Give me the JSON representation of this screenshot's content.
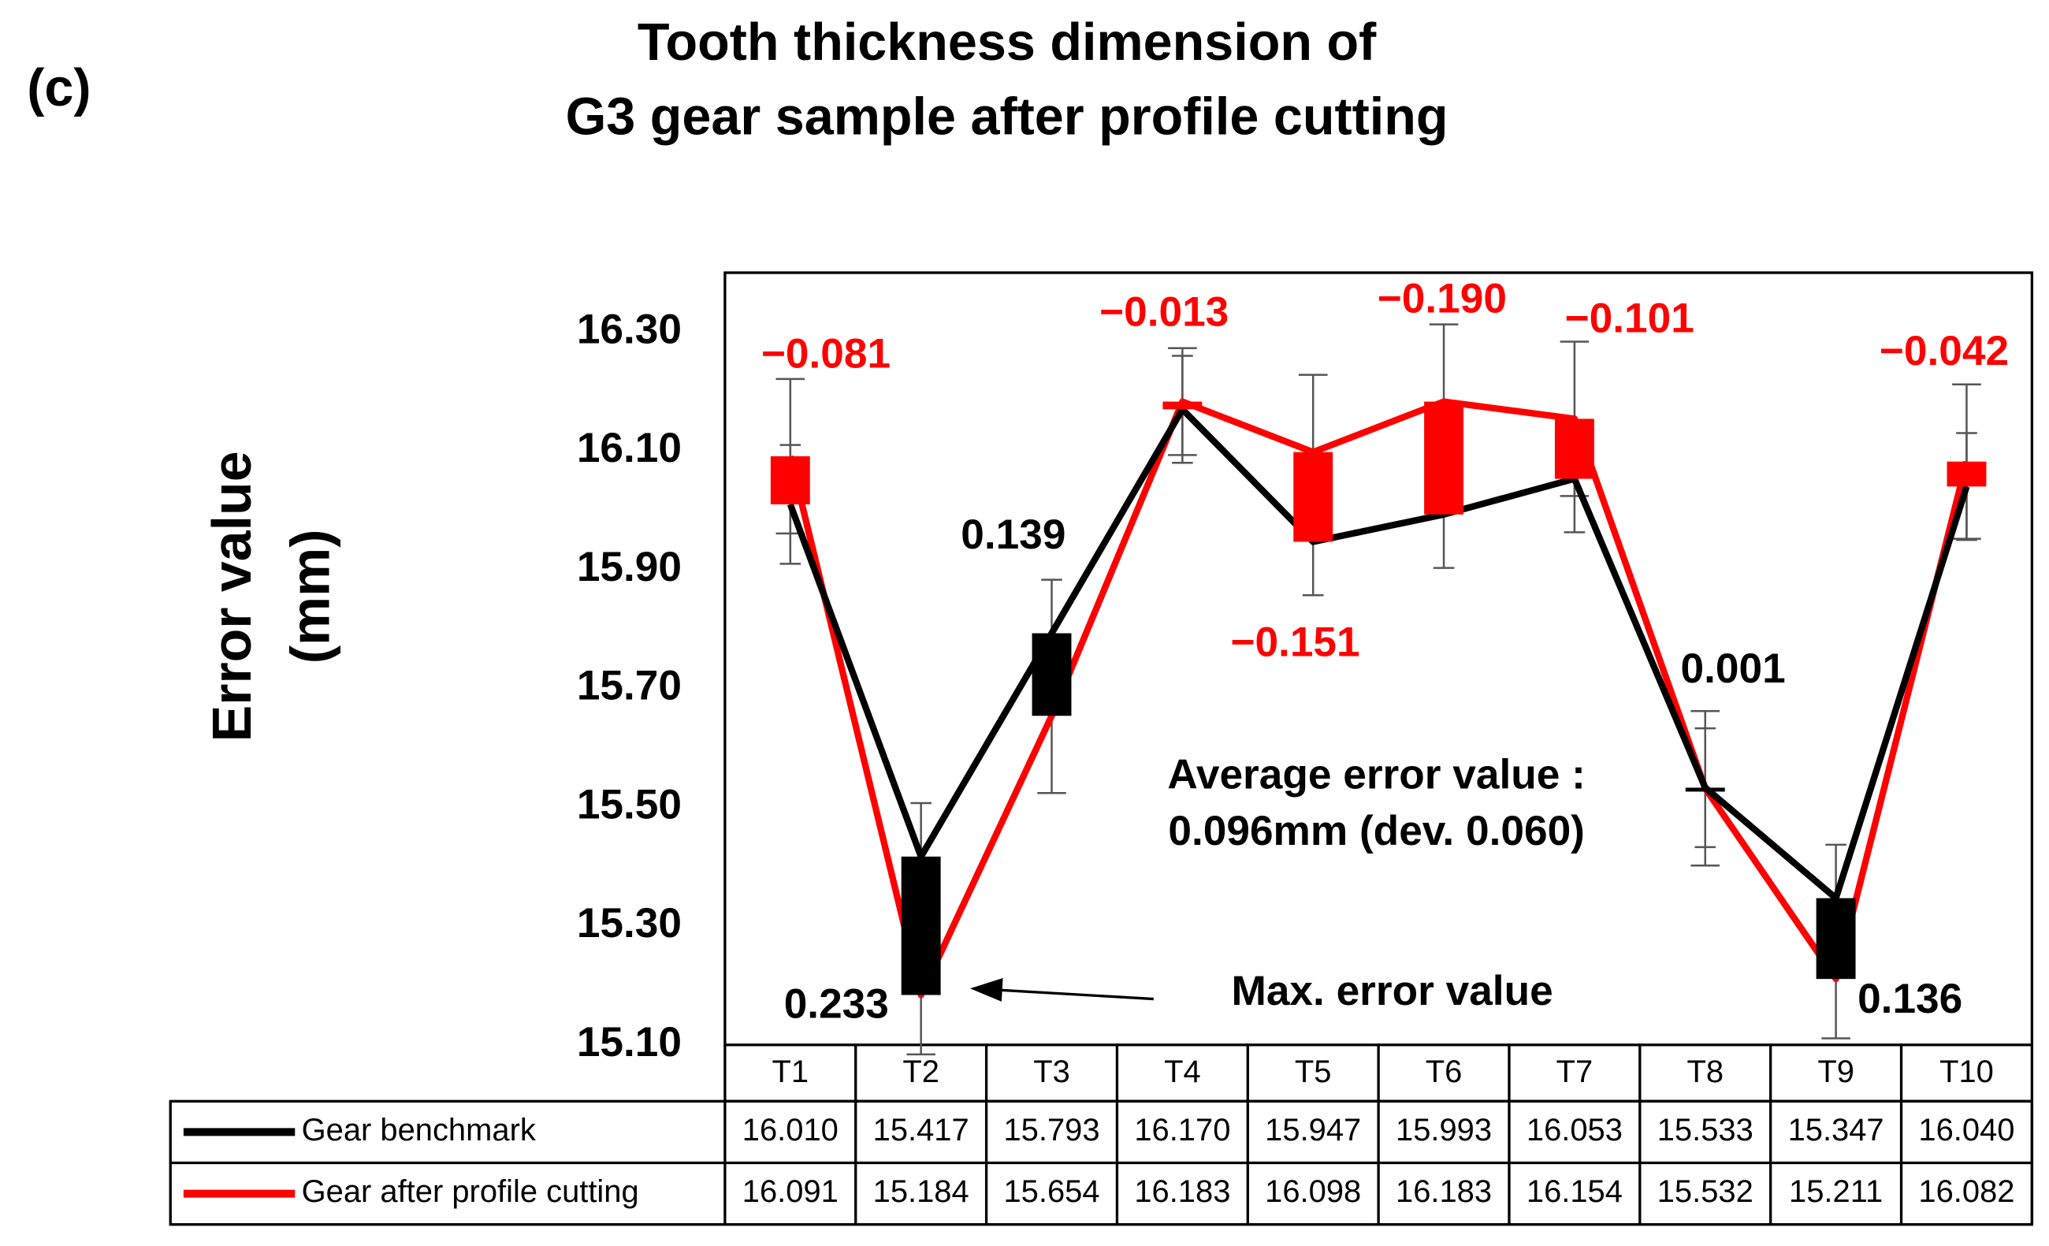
{
  "chart_data": {
    "type": "line",
    "panel_label": "(c)",
    "title": [
      "Tooth thickness dimension of",
      "G3 gear sample after profile cutting"
    ],
    "ylabel": [
      "Error value",
      "(mm)"
    ],
    "categories": [
      "T1",
      "T2",
      "T3",
      "T4",
      "T5",
      "T6",
      "T7",
      "T8",
      "T9",
      "T10"
    ],
    "series": [
      {
        "name": "Gear benchmark",
        "color": "#000000",
        "values": [
          16.01,
          15.417,
          15.793,
          16.17,
          15.947,
          15.993,
          16.053,
          15.533,
          15.347,
          16.04
        ],
        "value_labels": [
          "16.010",
          "15.417",
          "15.793",
          "16.170",
          "15.947",
          "15.993",
          "16.053",
          "15.533",
          "15.347",
          "16.040"
        ],
        "errors": [
          0.1,
          0.09,
          0.09,
          0.09,
          0.09,
          0.09,
          0.09,
          0.1,
          0.09,
          0.09
        ]
      },
      {
        "name": "Gear after profile cutting",
        "color": "#ff0000",
        "values": [
          16.091,
          15.184,
          15.654,
          16.183,
          16.098,
          16.183,
          16.154,
          15.532,
          15.211,
          16.082
        ],
        "value_labels": [
          "16.091",
          "15.184",
          "15.654",
          "16.183",
          "16.098",
          "16.183",
          "16.154",
          "15.532",
          "15.211",
          "16.082"
        ],
        "errors": [
          0.13,
          0.1,
          0.13,
          0.09,
          0.13,
          0.13,
          0.13,
          0.13,
          0.1,
          0.13
        ]
      }
    ],
    "difference_labels": [
      "−0.081",
      "0.233",
      "0.139",
      "−0.013",
      "−0.151",
      "−0.190",
      "−0.101",
      "0.001",
      "0.136",
      "−0.042"
    ],
    "annotations": [
      "Average error value :",
      "0.096mm (dev. 0.060)",
      "Max. error value"
    ],
    "ylim": [
      15.1,
      16.4
    ],
    "yticks": [
      {
        "value": 15.1,
        "label": "15.10"
      },
      {
        "value": 15.3,
        "label": "15.30"
      },
      {
        "value": 15.5,
        "label": "15.50"
      },
      {
        "value": 15.7,
        "label": "15.70"
      },
      {
        "value": 15.9,
        "label": "15.90"
      },
      {
        "value": 16.1,
        "label": "16.10"
      },
      {
        "value": 16.3,
        "label": "16.30"
      }
    ],
    "grid": false
  }
}
